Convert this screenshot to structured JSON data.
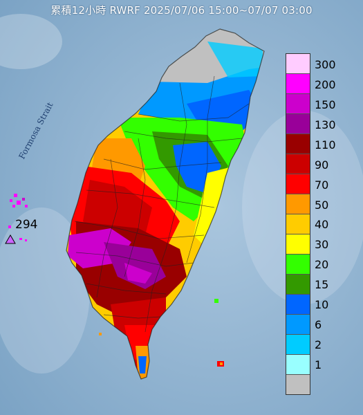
{
  "map": {
    "title": "累積12小時 RWRF 2025/07/06 15:00~07/07 03:00",
    "strait_label": "Formosa Strait",
    "max_value_label": "294",
    "max_marker_icon": "triangle-marker-icon"
  },
  "legend": {
    "items": [
      {
        "label": "300",
        "color": "#ffccff"
      },
      {
        "label": "200",
        "color": "#ff00ff"
      },
      {
        "label": "150",
        "color": "#cc00cc"
      },
      {
        "label": "130",
        "color": "#990099"
      },
      {
        "label": "110",
        "color": "#990000"
      },
      {
        "label": "90",
        "color": "#cc0000"
      },
      {
        "label": "70",
        "color": "#ff0000"
      },
      {
        "label": "50",
        "color": "#ff9900"
      },
      {
        "label": "40",
        "color": "#ffcc00"
      },
      {
        "label": "30",
        "color": "#ffff00"
      },
      {
        "label": "20",
        "color": "#33ff00"
      },
      {
        "label": "15",
        "color": "#339900"
      },
      {
        "label": "10",
        "color": "#0066ff"
      },
      {
        "label": "6",
        "color": "#0099ff"
      },
      {
        "label": "2",
        "color": "#00ccff"
      },
      {
        "label": "1",
        "color": "#99ffff"
      },
      {
        "label": "",
        "color": "#c0c0c0"
      }
    ]
  },
  "colors": {
    "sea": "#7fa6c8",
    "sea_light": "#a9c4dc",
    "no_rain": "#c0c0c0"
  }
}
